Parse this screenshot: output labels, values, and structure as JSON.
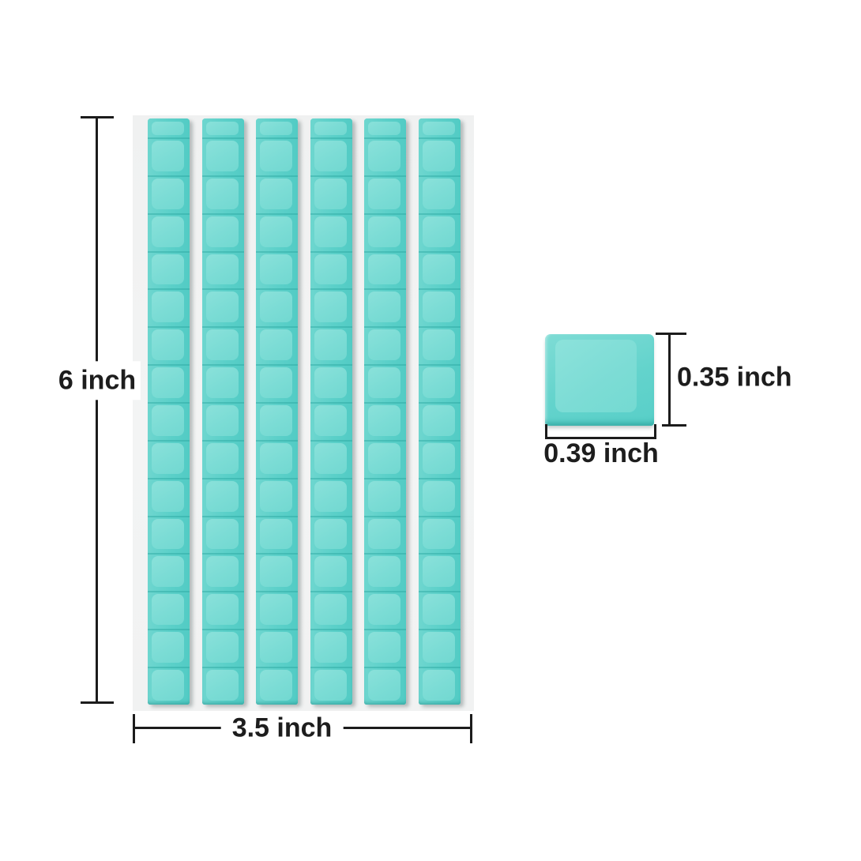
{
  "page": {
    "background": "#ffffff",
    "description": "Product dimension diagram of teal adhesive putty tack strips"
  },
  "strip_sheet": {
    "strip_count": 6,
    "segments_per_strip": 16,
    "colors": {
      "backing": "#f2f3f3",
      "tile_base": "#5dd0c9",
      "tile_inner": "#80ded7",
      "tile_divider": "rgba(42,166,159,0.45)"
    }
  },
  "single_tile": {
    "colors": {
      "base": "#63d3cc",
      "inner": "#7cdcd5",
      "bottom_edge": "#3fbfb8"
    }
  },
  "annotations": {
    "line_color": "#1c1c1c",
    "text_color": "#1d1d1d",
    "sheet_height": {
      "label": "6 inch"
    },
    "sheet_width": {
      "label": "3.5 inch"
    },
    "tile_height": {
      "label": "0.35 inch"
    },
    "tile_width": {
      "label": "0.39 inch"
    }
  }
}
